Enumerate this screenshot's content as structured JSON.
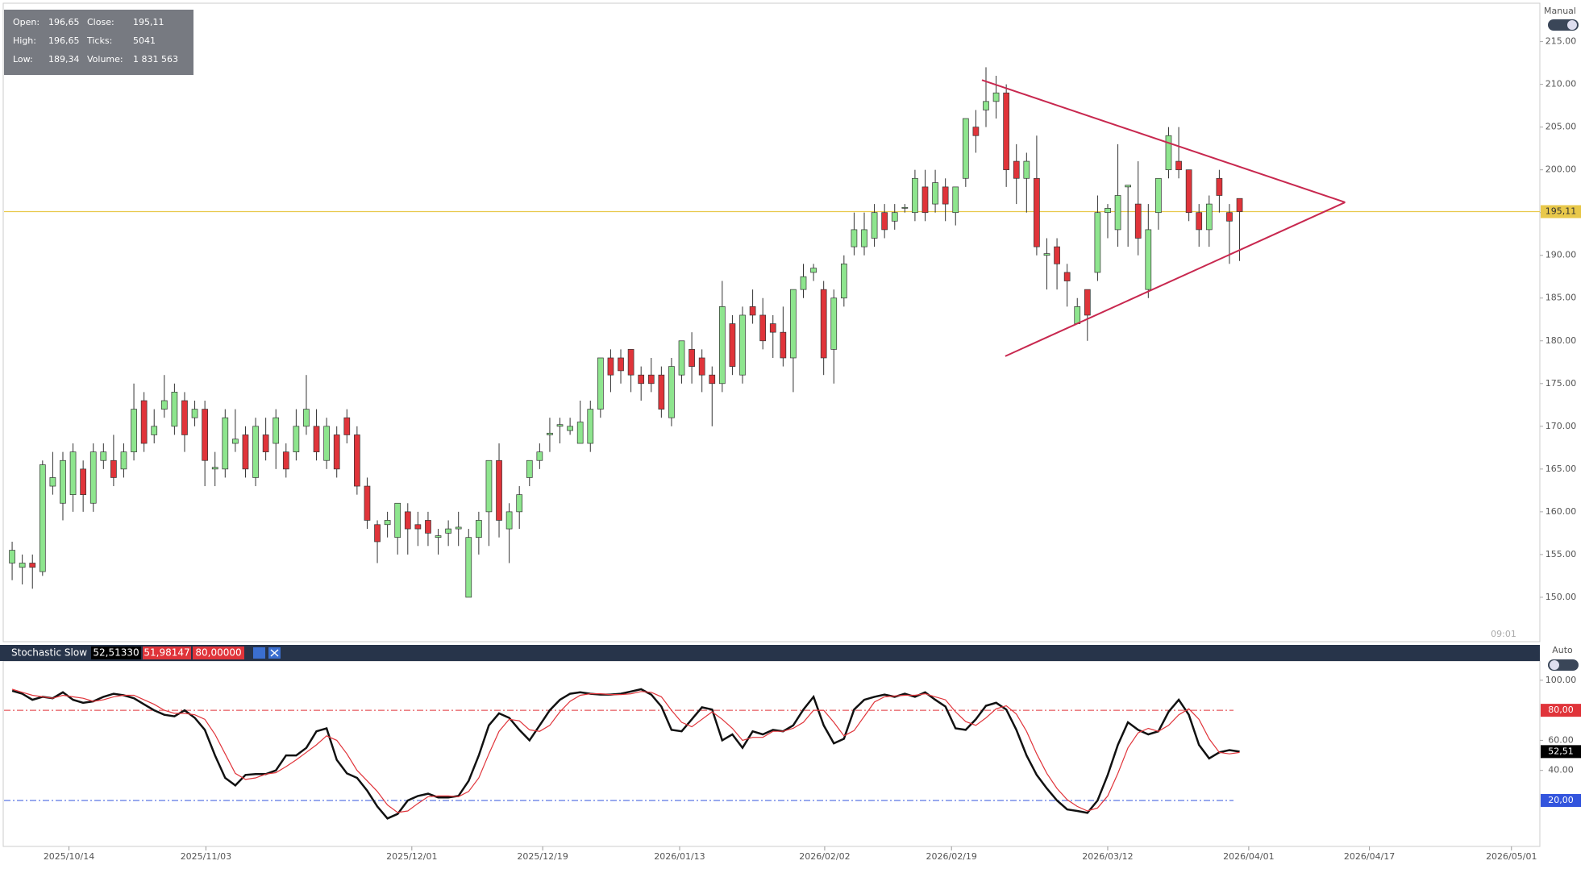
{
  "mode_label": "Manual",
  "time_label": "09:01",
  "auto_label": "Auto",
  "info_box": {
    "rows": [
      [
        "Open:",
        "196,65",
        "Close:",
        "195,11"
      ],
      [
        "High:",
        "196,65",
        "Ticks:",
        "5041"
      ],
      [
        "Low:",
        "189,34",
        "Volume:",
        "1 831 563"
      ]
    ]
  },
  "chart_data": [
    {
      "type": "candlestick",
      "x": [
        0,
        1,
        2,
        3,
        4,
        5,
        6,
        7,
        8,
        9,
        10,
        11,
        12,
        13,
        14,
        15,
        16,
        17,
        18,
        19,
        20,
        21,
        22,
        23,
        24,
        25,
        26,
        27,
        28,
        29,
        30,
        31,
        32,
        33,
        34,
        35,
        36,
        37,
        38,
        39,
        40,
        41,
        42,
        43,
        44,
        45,
        46,
        47,
        48,
        49,
        50,
        51,
        52,
        53,
        54,
        55,
        56,
        57,
        58,
        59,
        60,
        61,
        62,
        63,
        64,
        65,
        66,
        67,
        68,
        69,
        70,
        71,
        72,
        73,
        74,
        75,
        76,
        77,
        78,
        79,
        80,
        81,
        82,
        83,
        84,
        85,
        86,
        87,
        88,
        89,
        90,
        91,
        92,
        93,
        94,
        95,
        96,
        97,
        98,
        99,
        100,
        101,
        102,
        103,
        104,
        105,
        106,
        107,
        108,
        109,
        110,
        111,
        112,
        113,
        114,
        115,
        116,
        117,
        118,
        119,
        120,
        121
      ],
      "open": [
        154,
        153.5,
        154,
        153,
        163,
        161,
        162,
        165,
        161,
        166,
        166,
        165,
        167,
        173,
        169,
        172,
        170,
        173,
        171,
        172,
        165,
        165,
        168,
        169,
        164,
        169,
        168,
        167,
        167,
        170,
        170,
        166,
        169,
        171,
        169,
        163,
        158.5,
        158.5,
        157,
        160,
        158.5,
        159,
        157,
        157.5,
        158,
        150,
        157,
        160,
        166,
        158,
        160,
        164,
        166,
        169,
        170,
        169.5,
        168,
        168,
        172,
        178,
        178,
        179,
        176,
        176,
        176,
        171,
        176,
        179,
        178,
        176,
        175,
        182,
        176,
        184,
        183,
        182,
        181,
        178,
        186,
        188,
        186,
        179,
        185,
        191,
        191,
        192,
        195,
        194,
        195.5,
        195,
        198,
        196,
        198,
        195,
        199,
        205,
        207,
        208,
        209,
        201,
        199,
        199,
        190,
        191,
        188,
        182,
        186,
        188,
        195,
        193,
        198,
        196,
        186,
        195,
        200,
        201,
        200,
        195,
        193,
        199,
        195,
        196.65
      ],
      "high": [
        156.5,
        155,
        155,
        166,
        167,
        167,
        168,
        166,
        168,
        168,
        169,
        168,
        175,
        174,
        172,
        176,
        175,
        174,
        173,
        173,
        167,
        172,
        172,
        170,
        171,
        171,
        172,
        168,
        172,
        176,
        172,
        171,
        170,
        172,
        170,
        164,
        159,
        160,
        161,
        161,
        160,
        160,
        158,
        159,
        160,
        158,
        160,
        166,
        168,
        161,
        163,
        166,
        168,
        171,
        171,
        171,
        173,
        173,
        178,
        179,
        179,
        179,
        177,
        178,
        177,
        178,
        180,
        181,
        179,
        177,
        187,
        183,
        184,
        186,
        185,
        183,
        184,
        186,
        189,
        189,
        187,
        186,
        190,
        195,
        195,
        196,
        196,
        196,
        196,
        200,
        200,
        200,
        199,
        198,
        206,
        207,
        212,
        211,
        210,
        203,
        202,
        204,
        192,
        192,
        189,
        185,
        186,
        197,
        196,
        203,
        198,
        201,
        196,
        199,
        205,
        205,
        200,
        196,
        197,
        200,
        196,
        196.65
      ],
      "low": [
        152,
        151.5,
        151,
        152.5,
        162,
        159,
        160,
        160,
        160,
        165,
        163,
        164,
        166,
        167,
        168,
        171,
        169,
        167,
        170,
        163,
        163,
        164,
        167,
        164,
        163,
        166,
        165,
        164,
        166,
        169,
        166,
        165,
        164,
        168,
        162,
        158,
        154,
        157,
        155,
        155,
        156,
        156,
        155,
        156,
        156,
        150,
        155,
        156,
        157,
        154,
        158,
        163,
        165,
        167,
        168,
        169,
        168,
        167,
        171,
        174,
        175,
        174,
        173,
        174,
        171,
        170,
        175,
        175,
        174,
        170,
        174,
        176,
        175,
        182,
        179,
        178,
        177,
        174,
        185,
        187,
        176,
        175,
        184,
        190,
        190,
        191,
        192,
        193,
        195,
        194,
        194,
        195,
        194,
        193.5,
        198,
        202,
        205,
        206,
        198,
        196,
        195,
        190,
        186,
        186,
        184,
        182,
        180,
        187,
        192,
        191,
        191,
        190,
        185,
        193,
        199,
        199,
        194,
        191,
        191,
        195,
        189,
        189.34
      ],
      "close": [
        155.5,
        154,
        153.5,
        165.5,
        164,
        166,
        167,
        162,
        167,
        167,
        164,
        167,
        172,
        168,
        170,
        173,
        174,
        169,
        172,
        166,
        165.2,
        171,
        168.5,
        165,
        170,
        167,
        171,
        165,
        170,
        172,
        167,
        170,
        165,
        169,
        163,
        159,
        156.5,
        159,
        161,
        158,
        158,
        157.5,
        157.2,
        158,
        158.2,
        157,
        159,
        166,
        159,
        160,
        162,
        166,
        167,
        169.2,
        170.2,
        170,
        170.5,
        172,
        178,
        176,
        176.5,
        176,
        175,
        175,
        172,
        177,
        180,
        177,
        176,
        175,
        184,
        177,
        183,
        183,
        180,
        181,
        178,
        186,
        187.5,
        188.5,
        178,
        185,
        189,
        193,
        193,
        195,
        193,
        195,
        195.6,
        199,
        195,
        198.5,
        196,
        198,
        206,
        204,
        208,
        209,
        200,
        199,
        201,
        191,
        190.2,
        189,
        187,
        184,
        183,
        195,
        195.5,
        197,
        198.2,
        192,
        193,
        199,
        204,
        200,
        195,
        193,
        196,
        197,
        194,
        195.11
      ],
      "colors": {
        "up": "#8ee58e",
        "down": "#e0343a"
      },
      "xlim": [
        -0.8,
        150.6
      ],
      "ylim": [
        144.9,
        219.3
      ],
      "yticks": [
        {
          "value": 150,
          "label": "150.00"
        },
        {
          "value": 155,
          "label": "155.00"
        },
        {
          "value": 160,
          "label": "160.00"
        },
        {
          "value": 165,
          "label": "165.00"
        },
        {
          "value": 170,
          "label": "170.00"
        },
        {
          "value": 175,
          "label": "175.00"
        },
        {
          "value": 180,
          "label": "180.00"
        },
        {
          "value": 185,
          "label": "185.00"
        },
        {
          "value": 190,
          "label": "190.00"
        },
        {
          "value": 195,
          "label": "195.00"
        },
        {
          "value": 200,
          "label": "200.00"
        },
        {
          "value": 205,
          "label": "205.00"
        },
        {
          "value": 210,
          "label": "210.00"
        },
        {
          "value": 215,
          "label": "215.00"
        }
      ],
      "last_price": {
        "value": 195.11,
        "label": "195,11",
        "color": "#e8c84a"
      },
      "trendlines": [
        {
          "x": [
            95.6,
            131.4
          ],
          "y": [
            210.5,
            196.2
          ],
          "color": "#c8284f"
        },
        {
          "x": [
            97.9,
            131.4
          ],
          "y": [
            178.2,
            196.2
          ],
          "color": "#c8284f"
        }
      ]
    },
    {
      "type": "line",
      "title": "Stochastic Slow",
      "header_values": [
        {
          "label": "52,51330",
          "color": "#000000"
        },
        {
          "label": "51,98147",
          "color": "#e0343a"
        },
        {
          "label": "80,00000",
          "color": "#e0343a"
        }
      ],
      "x": [
        0,
        1,
        2,
        3,
        4,
        5,
        6,
        7,
        8,
        9,
        10,
        11,
        12,
        13,
        14,
        15,
        16,
        17,
        18,
        19,
        20,
        21,
        22,
        23,
        24,
        25,
        26,
        27,
        28,
        29,
        30,
        31,
        32,
        33,
        34,
        35,
        36,
        37,
        38,
        39,
        40,
        41,
        42,
        43,
        44,
        45,
        46,
        47,
        48,
        49,
        50,
        51,
        52,
        53,
        54,
        55,
        56,
        57,
        58,
        59,
        60,
        61,
        62,
        63,
        64,
        65,
        66,
        67,
        68,
        69,
        70,
        71,
        72,
        73,
        74,
        75,
        76,
        77,
        78,
        79,
        80,
        81,
        82,
        83,
        84,
        85,
        86,
        87,
        88,
        89,
        90,
        91,
        92,
        93,
        94,
        95,
        96,
        97,
        98,
        99,
        100,
        101,
        102,
        103,
        104,
        105,
        106,
        107,
        108,
        109,
        110,
        111,
        112,
        113,
        114,
        115,
        116,
        117,
        118,
        119,
        120,
        121
      ],
      "series": [
        {
          "color": "#111111",
          "values": [
            93,
            91,
            87,
            89,
            88,
            92,
            87,
            85,
            86,
            89,
            91,
            90,
            88,
            84,
            80,
            77,
            76,
            80,
            75,
            67,
            50,
            35,
            30,
            37,
            37.5,
            37.5,
            40,
            50,
            50,
            55,
            66,
            68,
            47,
            38,
            35,
            26.5,
            16,
            8,
            11,
            20,
            23,
            24.5,
            22,
            22,
            23,
            33,
            50,
            70,
            78,
            75,
            67,
            60,
            70,
            80,
            87,
            91,
            92,
            91,
            90.5,
            90.5,
            91,
            92.5,
            94,
            90.5,
            82.5,
            67,
            66,
            74,
            82,
            80.5,
            60,
            64,
            55,
            66,
            64,
            67,
            66,
            70,
            80.5,
            89,
            70,
            58,
            61,
            80.5,
            87,
            89,
            90.5,
            89,
            91,
            89,
            92,
            87,
            82.5,
            68,
            67,
            74,
            83,
            85,
            80.5,
            67,
            50,
            37,
            28,
            20,
            14,
            13,
            11.7,
            20,
            37,
            57,
            72,
            67,
            64,
            66,
            79,
            87,
            77,
            57,
            48,
            52,
            53.5,
            52.51
          ]
        },
        {
          "color": "#e0343a",
          "values": [
            94,
            92,
            90,
            89,
            88,
            90,
            89,
            88,
            86,
            87,
            89,
            90,
            90,
            87,
            84,
            80,
            78,
            78,
            77,
            74,
            64,
            51,
            38,
            34,
            35,
            37.5,
            38.5,
            42.5,
            47,
            52,
            57,
            63,
            60,
            51,
            40,
            33,
            26,
            17,
            12,
            13,
            18,
            22.5,
            23,
            23,
            22.5,
            26,
            35,
            51,
            66,
            74,
            73,
            67,
            66,
            70,
            79,
            86,
            90,
            91,
            91,
            90.5,
            90.5,
            91,
            92.5,
            92,
            89,
            80,
            72,
            69,
            74,
            79,
            74,
            68,
            60,
            62,
            62,
            66,
            66,
            68,
            72,
            80,
            80,
            72,
            63,
            66.5,
            76,
            85.5,
            89,
            89.5,
            90,
            90,
            91,
            89,
            87,
            79,
            72.5,
            70,
            75,
            81,
            83,
            77.5,
            66,
            51,
            38,
            28,
            20.5,
            16,
            13,
            15,
            23,
            38,
            55,
            65,
            68,
            66,
            70,
            77,
            81,
            74,
            61,
            52,
            51,
            51.98
          ]
        }
      ],
      "xlim": [
        -0.8,
        150.6
      ],
      "ylim": [
        -10.6,
        112.8
      ],
      "yticks": [
        {
          "value": 40,
          "label": "40.00"
        },
        {
          "value": 60,
          "label": "60.00"
        },
        {
          "value": 100,
          "label": "100.00"
        }
      ],
      "levels": [
        {
          "value": 80,
          "label": "80,00",
          "color": "#e0343a"
        },
        {
          "value": 20,
          "label": "20,00",
          "color": "#3355dd"
        }
      ],
      "current": {
        "value": 52.51,
        "label": "52,51",
        "color": "#000000"
      },
      "xticks": [
        {
          "value": 5.6,
          "label": "2025/10/14"
        },
        {
          "value": 19.1,
          "label": "2025/11/03"
        },
        {
          "value": 39.4,
          "label": "2025/12/01"
        },
        {
          "value": 52.3,
          "label": "2025/12/19"
        },
        {
          "value": 65.8,
          "label": "2026/01/13"
        },
        {
          "value": 80.1,
          "label": "2026/02/02"
        },
        {
          "value": 92.6,
          "label": "2026/02/19"
        },
        {
          "value": 108,
          "label": "2026/03/12"
        },
        {
          "value": 121.9,
          "label": "2026/04/01"
        },
        {
          "value": 133.8,
          "label": "2026/04/17"
        },
        {
          "value": 147.8,
          "label": "2026/05/01"
        }
      ]
    }
  ]
}
